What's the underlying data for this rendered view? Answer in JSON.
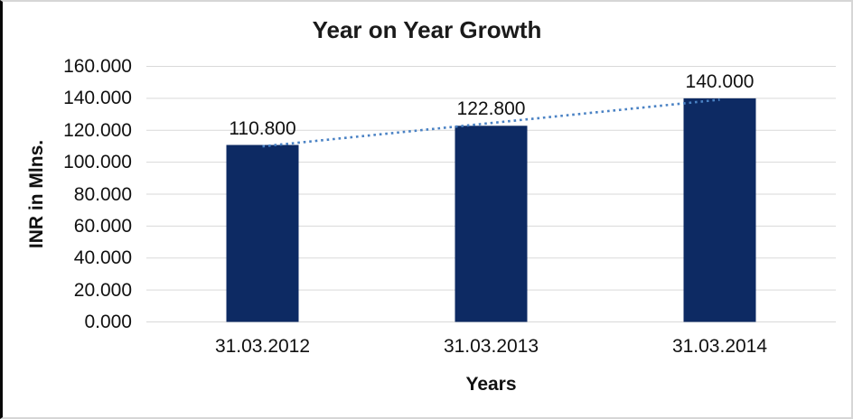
{
  "chart_data": {
    "type": "bar",
    "title": "Year on Year Growth",
    "xlabel": "Years",
    "ylabel": "INR in Mlns.",
    "categories": [
      "31.03.2012",
      "31.03.2013",
      "31.03.2014"
    ],
    "values": [
      110.8,
      122.8,
      140.0
    ],
    "value_labels": [
      "110.800",
      "122.800",
      "140.000"
    ],
    "ylim": [
      0,
      160
    ],
    "ytick_step": 20,
    "ytick_labels": [
      "0.000",
      "20.000",
      "40.000",
      "60.000",
      "80.000",
      "100.000",
      "120.000",
      "140.000",
      "160.000"
    ],
    "grid": true,
    "legend_position": "none",
    "bar_color": "#0d2a63",
    "gridline_color": "#d9d9d9",
    "text_color": "#111111",
    "trendline": {
      "type": "linear",
      "style": "dotted",
      "color": "#4a82c4"
    }
  },
  "frame": {
    "background": "#ffffff",
    "border_color": "#d6d6d6",
    "left_edge_color": "#070707"
  }
}
